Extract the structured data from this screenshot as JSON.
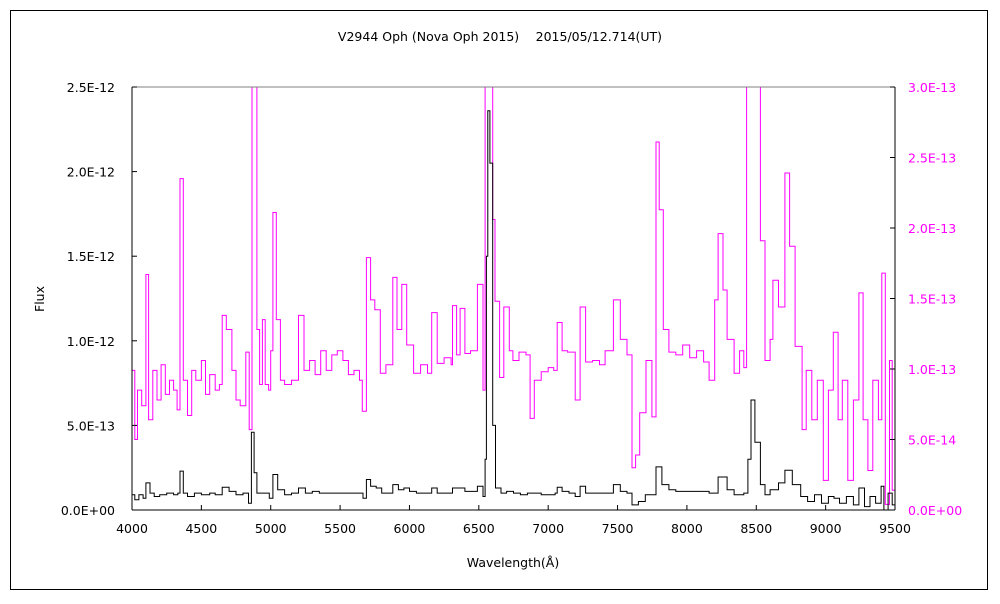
{
  "chart_data": {
    "type": "line",
    "title": "V2944 Oph (Nova Oph 2015)　 2015/05/12.714(UT)",
    "xlabel": "Wavelength(Å)",
    "ylabel": "Flux",
    "xlim": [
      4000,
      9500
    ],
    "ylim_left": [
      0,
      2.5e-12
    ],
    "ylim_right": [
      0,
      3e-13
    ],
    "grid": false,
    "x_ticks": [
      "4000",
      "4500",
      "5000",
      "5500",
      "6000",
      "6500",
      "7000",
      "7500",
      "8000",
      "8500",
      "9000",
      "9500"
    ],
    "y_ticks_left": [
      "0.0E+00",
      "5.0E-13",
      "1.0E-12",
      "1.5E-12",
      "2.0E-12",
      "2.5E-12"
    ],
    "y_ticks_right": [
      "0.0E+00",
      "5.0E-14",
      "1.0E-13",
      "1.5E-13",
      "2.0E-13",
      "2.5E-13",
      "3.0E-13"
    ],
    "colors": {
      "left_series": "#000000",
      "right_series": "#ff00ff",
      "right_axis_labels": "#ff00ff"
    },
    "series": [
      {
        "axis": "left",
        "color": "#000000",
        "points": [
          [
            4000,
            9e-14
          ],
          [
            4020,
            6e-14
          ],
          [
            4050,
            9e-14
          ],
          [
            4080,
            7e-14
          ],
          [
            4100,
            1.6e-13
          ],
          [
            4130,
            1e-13
          ],
          [
            4160,
            8e-14
          ],
          [
            4200,
            9e-14
          ],
          [
            4250,
            1e-13
          ],
          [
            4300,
            9e-14
          ],
          [
            4330,
            1e-13
          ],
          [
            4346,
            2.3e-13
          ],
          [
            4370,
            1e-13
          ],
          [
            4400,
            8e-14
          ],
          [
            4450,
            1e-13
          ],
          [
            4500,
            9e-14
          ],
          [
            4560,
            1e-13
          ],
          [
            4600,
            9e-14
          ],
          [
            4650,
            1.35e-13
          ],
          [
            4700,
            1.1e-13
          ],
          [
            4750,
            9e-14
          ],
          [
            4800,
            1e-13
          ],
          [
            4840,
            4e-14
          ],
          [
            4861,
            4.6e-13
          ],
          [
            4880,
            2.2e-13
          ],
          [
            4900,
            1e-13
          ],
          [
            4950,
            1e-13
          ],
          [
            4990,
            7e-14
          ],
          [
            5016,
            2.1e-13
          ],
          [
            5050,
            1.2e-13
          ],
          [
            5100,
            9e-14
          ],
          [
            5150,
            1e-13
          ],
          [
            5200,
            1.3e-13
          ],
          [
            5250,
            1e-13
          ],
          [
            5300,
            1.1e-13
          ],
          [
            5350,
            1e-13
          ],
          [
            5400,
            1e-13
          ],
          [
            5450,
            1e-13
          ],
          [
            5500,
            1e-13
          ],
          [
            5550,
            1e-13
          ],
          [
            5600,
            1e-13
          ],
          [
            5650,
            1e-13
          ],
          [
            5665,
            7e-14
          ],
          [
            5690,
            1.8e-13
          ],
          [
            5720,
            1.4e-13
          ],
          [
            5760,
            1.3e-13
          ],
          [
            5800,
            1e-13
          ],
          [
            5850,
            1e-13
          ],
          [
            5880,
            1.5e-13
          ],
          [
            5920,
            1.2e-13
          ],
          [
            5960,
            1.3e-13
          ],
          [
            6000,
            1.1e-13
          ],
          [
            6050,
            1e-13
          ],
          [
            6100,
            1e-13
          ],
          [
            6160,
            1.3e-13
          ],
          [
            6200,
            1e-13
          ],
          [
            6250,
            1e-13
          ],
          [
            6310,
            1.3e-13
          ],
          [
            6365,
            1.3e-13
          ],
          [
            6400,
            1.1e-13
          ],
          [
            6450,
            1.1e-13
          ],
          [
            6490,
            1.4e-13
          ],
          [
            6530,
            8e-14
          ],
          [
            6545,
            3e-13
          ],
          [
            6555,
            1.5e-12
          ],
          [
            6565,
            2.36e-12
          ],
          [
            6580,
            2.05e-12
          ],
          [
            6600,
            5e-13
          ],
          [
            6620,
            1.3e-13
          ],
          [
            6660,
            1e-13
          ],
          [
            6700,
            1.1e-13
          ],
          [
            6750,
            1e-13
          ],
          [
            6800,
            9e-14
          ],
          [
            6850,
            1e-13
          ],
          [
            6900,
            1e-13
          ],
          [
            6950,
            9e-14
          ],
          [
            7000,
            9e-14
          ],
          [
            7050,
            1e-13
          ],
          [
            7065,
            1.35e-13
          ],
          [
            7100,
            1.1e-13
          ],
          [
            7150,
            1e-13
          ],
          [
            7195,
            8e-14
          ],
          [
            7230,
            1.4e-13
          ],
          [
            7270,
            1e-13
          ],
          [
            7320,
            1e-13
          ],
          [
            7400,
            1e-13
          ],
          [
            7470,
            1.5e-13
          ],
          [
            7520,
            1.1e-13
          ],
          [
            7568,
            1e-13
          ],
          [
            7604,
            3e-14
          ],
          [
            7650,
            5e-14
          ],
          [
            7700,
            9e-14
          ],
          [
            7748,
            9e-14
          ],
          [
            7777,
            2.55e-13
          ],
          [
            7820,
            1.5e-13
          ],
          [
            7870,
            1.2e-13
          ],
          [
            7920,
            1.1e-13
          ],
          [
            8000,
            1.1e-13
          ],
          [
            8080,
            1.1e-13
          ],
          [
            8160,
            1e-13
          ],
          [
            8225,
            1.95e-13
          ],
          [
            8290,
            1.2e-13
          ],
          [
            8340,
            9e-14
          ],
          [
            8410,
            1e-13
          ],
          [
            8440,
            3e-13
          ],
          [
            8462,
            6.5e-13
          ],
          [
            8490,
            4e-13
          ],
          [
            8530,
            1.5e-13
          ],
          [
            8563,
            9e-14
          ],
          [
            8600,
            1.2e-13
          ],
          [
            8660,
            1.6e-13
          ],
          [
            8706,
            2.35e-13
          ],
          [
            8760,
            1.5e-13
          ],
          [
            8820,
            8e-14
          ],
          [
            8870,
            5e-14
          ],
          [
            8920,
            9e-14
          ],
          [
            8970,
            4e-14
          ],
          [
            9020,
            8e-14
          ],
          [
            9060,
            7e-14
          ],
          [
            9100,
            4e-14
          ],
          [
            9150,
            8e-14
          ],
          [
            9200,
            3e-14
          ],
          [
            9240,
            1.3e-13
          ],
          [
            9280,
            2e-14
          ],
          [
            9320,
            8e-14
          ],
          [
            9360,
            4e-14
          ],
          [
            9400,
            1.4e-13
          ],
          [
            9420,
            0.0
          ],
          [
            9450,
            1e-13
          ],
          [
            9480,
            3e-14
          ],
          [
            9500,
            8e-14
          ]
        ]
      },
      {
        "axis": "right",
        "color": "#ff00ff",
        "points": [
          [
            4000,
            9.9e-14
          ],
          [
            4020,
            5e-14
          ],
          [
            4040,
            8.5e-14
          ],
          [
            4070,
            7.4e-14
          ],
          [
            4100,
            1.67e-13
          ],
          [
            4120,
            6.4e-14
          ],
          [
            4150,
            9.9e-14
          ],
          [
            4180,
            7.8e-14
          ],
          [
            4210,
            1.03e-13
          ],
          [
            4240,
            8.2e-14
          ],
          [
            4270,
            9.2e-14
          ],
          [
            4300,
            8.5e-14
          ],
          [
            4325,
            7.1e-14
          ],
          [
            4346,
            2.35e-13
          ],
          [
            4370,
            9.2e-14
          ],
          [
            4400,
            6.7e-14
          ],
          [
            4430,
            9.9e-14
          ],
          [
            4460,
            9.2e-14
          ],
          [
            4500,
            1.06e-13
          ],
          [
            4530,
            8.2e-14
          ],
          [
            4560,
            9.6e-14
          ],
          [
            4600,
            8.5e-14
          ],
          [
            4630,
            8.9e-14
          ],
          [
            4650,
            1.38e-13
          ],
          [
            4680,
            1.28e-13
          ],
          [
            4720,
            9.9e-14
          ],
          [
            4750,
            7.8e-14
          ],
          [
            4780,
            7.4e-14
          ],
          [
            4820,
            1.12e-13
          ],
          [
            4845,
            5.7e-14
          ],
          [
            4865,
            3.4e-13
          ],
          [
            4885,
            3e-13
          ],
          [
            4900,
            1.28e-13
          ],
          [
            4920,
            8.9e-14
          ],
          [
            4940,
            1.35e-13
          ],
          [
            4960,
            8.9e-14
          ],
          [
            4985,
            8.5e-14
          ],
          [
            5000,
            1.13e-13
          ],
          [
            5016,
            2.11e-13
          ],
          [
            5040,
            1.35e-13
          ],
          [
            5070,
            9.2e-14
          ],
          [
            5100,
            8.9e-14
          ],
          [
            5150,
            9.2e-14
          ],
          [
            5200,
            1.38e-13
          ],
          [
            5240,
            9.9e-14
          ],
          [
            5280,
            1.06e-13
          ],
          [
            5320,
            9.6e-14
          ],
          [
            5360,
            1.13e-13
          ],
          [
            5400,
            9.9e-14
          ],
          [
            5440,
            1.1e-13
          ],
          [
            5480,
            1.13e-13
          ],
          [
            5520,
            1.06e-13
          ],
          [
            5560,
            9.6e-14
          ],
          [
            5600,
            9.9e-14
          ],
          [
            5640,
            9.2e-14
          ],
          [
            5660,
            7e-14
          ],
          [
            5690,
            1.79e-13
          ],
          [
            5720,
            1.49e-13
          ],
          [
            5750,
            1.42e-13
          ],
          [
            5790,
            9.7e-14
          ],
          [
            5830,
            1.03e-13
          ],
          [
            5880,
            1.65e-13
          ],
          [
            5910,
            1.28e-13
          ],
          [
            5945,
            1.6e-13
          ],
          [
            5980,
            1.17e-13
          ],
          [
            6030,
            9.7e-14
          ],
          [
            6080,
            1.03e-13
          ],
          [
            6130,
            9.7e-14
          ],
          [
            6160,
            1.4e-13
          ],
          [
            6200,
            1.04e-13
          ],
          [
            6250,
            1.08e-13
          ],
          [
            6300,
            1.03e-13
          ],
          [
            6310,
            1.45e-13
          ],
          [
            6340,
            1.1e-13
          ],
          [
            6365,
            1.43e-13
          ],
          [
            6400,
            1.11e-13
          ],
          [
            6440,
            1.13e-13
          ],
          [
            6490,
            1.6e-13
          ],
          [
            6530,
            8.5e-14
          ],
          [
            6545,
            3.4e-13
          ],
          [
            6575,
            3.4e-13
          ],
          [
            6600,
            2.06e-13
          ],
          [
            6617,
            1.48e-13
          ],
          [
            6650,
            9.4e-14
          ],
          [
            6680,
            1.44e-13
          ],
          [
            6720,
            1.13e-13
          ],
          [
            6746,
            1.06e-13
          ],
          [
            6790,
            1.12e-13
          ],
          [
            6840,
            1.1e-13
          ],
          [
            6870,
            6.5e-14
          ],
          [
            6900,
            9.2e-14
          ],
          [
            6950,
            9.8e-14
          ],
          [
            7000,
            1.01e-13
          ],
          [
            7040,
            9.9e-14
          ],
          [
            7065,
            1.33e-13
          ],
          [
            7100,
            1.13e-13
          ],
          [
            7140,
            1.12e-13
          ],
          [
            7195,
            7.8e-14
          ],
          [
            7230,
            1.44e-13
          ],
          [
            7270,
            1.05e-13
          ],
          [
            7320,
            1.06e-13
          ],
          [
            7370,
            1.03e-13
          ],
          [
            7410,
            1.13e-13
          ],
          [
            7470,
            1.49e-13
          ],
          [
            7520,
            1.21e-13
          ],
          [
            7568,
            1.1e-13
          ],
          [
            7604,
            3e-14
          ],
          [
            7630,
            3.9e-14
          ],
          [
            7660,
            6.9e-14
          ],
          [
            7705,
            1.06e-13
          ],
          [
            7748,
            6.6e-14
          ],
          [
            7777,
            2.61e-13
          ],
          [
            7800,
            2.13e-13
          ],
          [
            7830,
            1.28e-13
          ],
          [
            7870,
            1.12e-13
          ],
          [
            7920,
            1.1e-13
          ],
          [
            7970,
            1.17e-13
          ],
          [
            8020,
            1.08e-13
          ],
          [
            8070,
            1.13e-13
          ],
          [
            8120,
            1.05e-13
          ],
          [
            8160,
            9.2e-14
          ],
          [
            8200,
            1.49e-13
          ],
          [
            8225,
            1.96e-13
          ],
          [
            8260,
            1.56e-13
          ],
          [
            8290,
            1.21e-13
          ],
          [
            8340,
            9.7e-14
          ],
          [
            8380,
            1.13e-13
          ],
          [
            8410,
            1.01e-13
          ],
          [
            8430,
            3.4e-13
          ],
          [
            8500,
            3.4e-13
          ],
          [
            8530,
            1.91e-13
          ],
          [
            8563,
            1.06e-13
          ],
          [
            8600,
            1.21e-13
          ],
          [
            8620,
            1.63e-13
          ],
          [
            8660,
            1.44e-13
          ],
          [
            8706,
            2.39e-13
          ],
          [
            8740,
            1.87e-13
          ],
          [
            8780,
            1.16e-13
          ],
          [
            8830,
            5.7e-14
          ],
          [
            8860,
            9.9e-14
          ],
          [
            8900,
            6.4e-14
          ],
          [
            8940,
            9.2e-14
          ],
          [
            8983,
            2.1e-14
          ],
          [
            9020,
            8.5e-14
          ],
          [
            9055,
            1.26e-13
          ],
          [
            9090,
            6.4e-14
          ],
          [
            9120,
            9.2e-14
          ],
          [
            9160,
            2.1e-14
          ],
          [
            9200,
            7.8e-14
          ],
          [
            9240,
            1.54e-13
          ],
          [
            9270,
            6.4e-14
          ],
          [
            9305,
            2.8e-14
          ],
          [
            9340,
            9.2e-14
          ],
          [
            9380,
            6.4e-14
          ],
          [
            9405,
            1.68e-13
          ],
          [
            9430,
            4e-15
          ],
          [
            9460,
            1.06e-13
          ],
          [
            9480,
            1.4e-14
          ],
          [
            9500,
            9.2e-14
          ]
        ]
      }
    ]
  }
}
